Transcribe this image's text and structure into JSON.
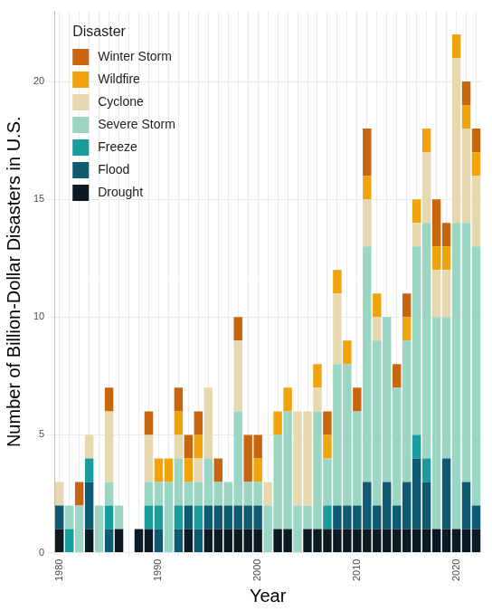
{
  "chart_data": {
    "type": "bar",
    "x_label": "Year",
    "y_label": "Number of Billion-Dollar Disasters in U.S.",
    "legend_title": "Disaster",
    "categories": [
      "1980",
      null,
      null,
      null,
      null,
      null,
      null,
      null,
      null,
      null,
      "1990",
      null,
      null,
      null,
      null,
      null,
      null,
      null,
      null,
      null,
      "2000",
      null,
      null,
      null,
      null,
      null,
      null,
      null,
      null,
      null,
      "2010",
      null,
      null,
      null,
      null,
      null,
      null,
      null,
      null,
      null,
      "2020",
      null,
      null
    ],
    "series": [
      {
        "name": "Drought",
        "color": "#0b1a22",
        "values": [
          1,
          0,
          0,
          1,
          0,
          0,
          1,
          0,
          1,
          1,
          0,
          0,
          0,
          1,
          0,
          1,
          1,
          1,
          1,
          1,
          1,
          0,
          1,
          1,
          0,
          1,
          1,
          1,
          1,
          1,
          1,
          1,
          1,
          1,
          1,
          1,
          1,
          1,
          1,
          1,
          1,
          1,
          1
        ]
      },
      {
        "name": "Flood",
        "color": "#0e5a73",
        "values": [
          1,
          0,
          0,
          2,
          0,
          1,
          0,
          0,
          0,
          0,
          1,
          0,
          1,
          1,
          1,
          1,
          1,
          1,
          1,
          1,
          1,
          0,
          0,
          0,
          0,
          0,
          0,
          0,
          1,
          1,
          1,
          2,
          1,
          2,
          1,
          2,
          3,
          2,
          0,
          3,
          0,
          2,
          1
        ]
      },
      {
        "name": "Freeze",
        "color": "#189c9c",
        "values": [
          0,
          1,
          0,
          1,
          0,
          1,
          0,
          0,
          0,
          1,
          1,
          0,
          1,
          0,
          1,
          0,
          0,
          0,
          0,
          0,
          0,
          0,
          0,
          0,
          0,
          0,
          0,
          1,
          0,
          0,
          0,
          0,
          0,
          0,
          0,
          0,
          1,
          1,
          0,
          0,
          0,
          0,
          0
        ]
      },
      {
        "name": "Severe Storm",
        "color": "#9bd6c4",
        "values": [
          0,
          1,
          2,
          0,
          2,
          1,
          1,
          0,
          0,
          1,
          1,
          3,
          2,
          1,
          1,
          2,
          1,
          1,
          4,
          1,
          1,
          2,
          4,
          5,
          2,
          1,
          5,
          2,
          6,
          6,
          4,
          10,
          7,
          7,
          5,
          6,
          8,
          10,
          9,
          6,
          13,
          11,
          11
        ]
      },
      {
        "name": "Cyclone",
        "color": "#e8d8b0",
        "values": [
          1,
          0,
          0,
          1,
          0,
          3,
          0,
          0,
          0,
          2,
          0,
          0,
          1,
          0,
          1,
          3,
          0,
          0,
          3,
          0,
          0,
          1,
          0,
          0,
          4,
          4,
          1,
          0,
          3,
          0,
          0,
          2,
          1,
          0,
          0,
          0,
          1,
          3,
          2,
          2,
          7,
          4,
          3
        ]
      },
      {
        "name": "Wildfire",
        "color": "#f0a30a",
        "values": [
          0,
          0,
          0,
          0,
          0,
          0,
          0,
          0,
          0,
          0,
          1,
          1,
          1,
          1,
          1,
          0,
          0,
          0,
          0,
          0,
          1,
          0,
          1,
          1,
          0,
          0,
          1,
          1,
          1,
          1,
          0,
          1,
          1,
          0,
          0,
          1,
          1,
          1,
          1,
          1,
          1,
          1,
          1
        ]
      },
      {
        "name": "Winter Storm",
        "color": "#c8660f",
        "values": [
          0,
          0,
          1,
          0,
          0,
          1,
          0,
          0,
          0,
          1,
          0,
          0,
          1,
          1,
          1,
          0,
          1,
          0,
          1,
          2,
          1,
          0,
          0,
          0,
          0,
          0,
          0,
          1,
          0,
          0,
          1,
          2,
          0,
          0,
          1,
          1,
          0,
          0,
          2,
          1,
          0,
          1,
          1
        ]
      }
    ],
    "ylim": [
      0,
      23
    ],
    "yticks": [
      0,
      5,
      10,
      15,
      20
    ],
    "stacked": true,
    "grid": true,
    "legend": "upper left"
  }
}
